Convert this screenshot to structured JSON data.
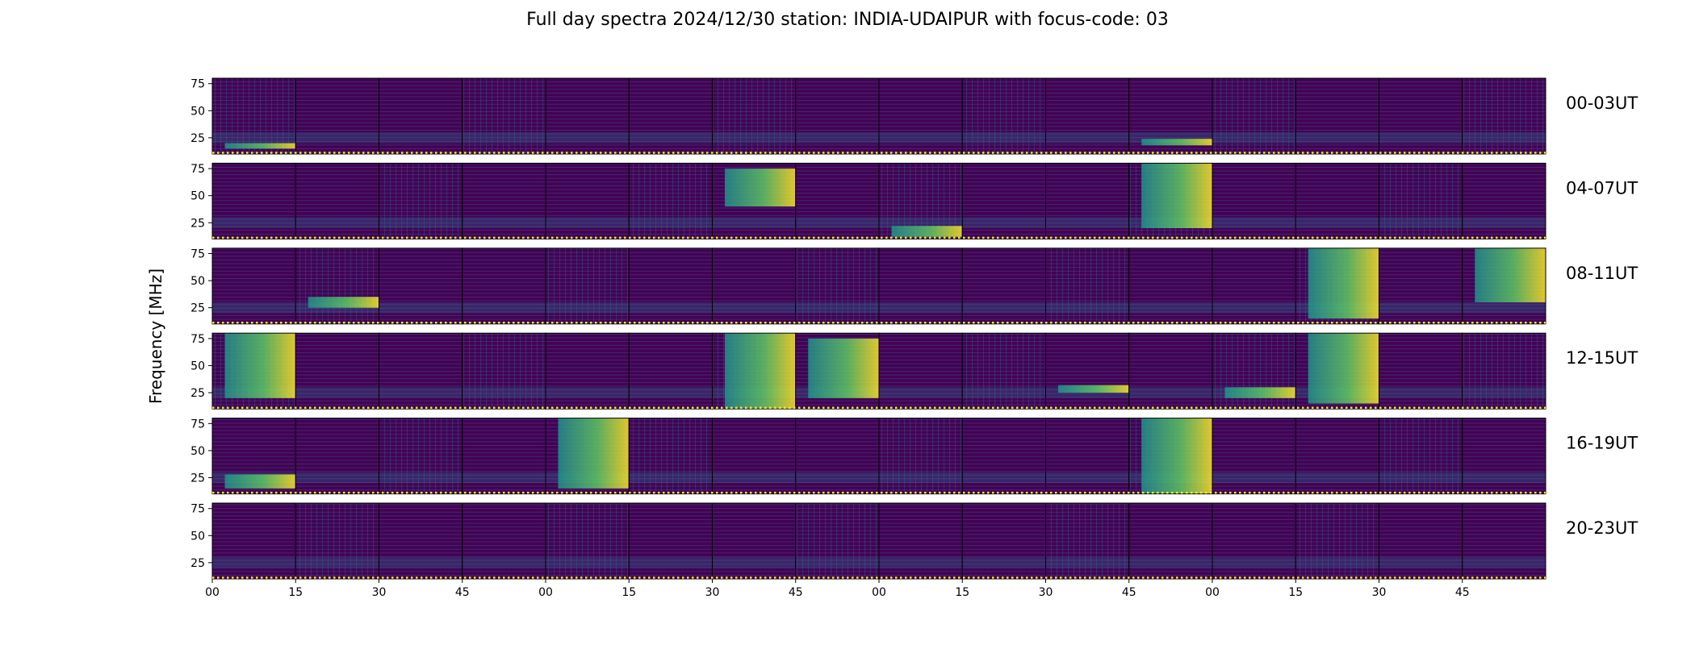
{
  "chart_data": {
    "type": "heatmap",
    "title": "Full day spectra 2024/12/30 station: INDIA-UDAIPUR with focus-code: 03",
    "ylabel": "Frequency [MHz]",
    "xlabel": "",
    "colormap": "viridis",
    "colors": {
      "low": "#440154",
      "mid": "#21918c",
      "high": "#fde725",
      "flag_dots": "#fde725",
      "frame": "#000000"
    },
    "y_ticks": [
      75,
      50,
      25
    ],
    "ylim": [
      10,
      80
    ],
    "x_ticks": [
      "00",
      "15",
      "30",
      "45",
      "00",
      "15",
      "30",
      "45",
      "00",
      "15",
      "30",
      "45",
      "00",
      "15",
      "30",
      "45"
    ],
    "panels_per_row": 16,
    "minutes_per_panel": 15,
    "rows": [
      {
        "label": "00-03UT",
        "hours": [
          0,
          1,
          2,
          3
        ],
        "bright_panels": [
          0,
          11
        ],
        "bright_band_mhz": [
          [
            15,
            20
          ],
          [
            18,
            24
          ]
        ]
      },
      {
        "label": "04-07UT",
        "hours": [
          4,
          5,
          6,
          7
        ],
        "bright_panels": [
          6,
          8,
          11
        ],
        "bright_band_mhz": [
          [
            40,
            75
          ],
          [
            12,
            22
          ],
          [
            20,
            80
          ]
        ]
      },
      {
        "label": "08-11UT",
        "hours": [
          8,
          9,
          10,
          11
        ],
        "bright_panels": [
          1,
          13,
          15
        ],
        "bright_band_mhz": [
          [
            25,
            35
          ],
          [
            15,
            80
          ],
          [
            30,
            80
          ]
        ]
      },
      {
        "label": "12-15UT",
        "hours": [
          12,
          13,
          14,
          15
        ],
        "bright_panels": [
          0,
          6,
          7,
          10,
          12,
          13
        ],
        "bright_band_mhz": [
          [
            20,
            80
          ],
          [
            10,
            80
          ],
          [
            20,
            75
          ],
          [
            25,
            32
          ],
          [
            20,
            30
          ],
          [
            15,
            80
          ]
        ]
      },
      {
        "label": "16-19UT",
        "hours": [
          16,
          17,
          18,
          19
        ],
        "bright_panels": [
          0,
          4,
          11
        ],
        "bright_band_mhz": [
          [
            15,
            28
          ],
          [
            15,
            80
          ],
          [
            10,
            80
          ]
        ]
      },
      {
        "label": "20-23UT",
        "hours": [
          20,
          21,
          22,
          23
        ],
        "bright_panels": [],
        "bright_band_mhz": []
      }
    ],
    "grid": false,
    "legend": "none"
  }
}
